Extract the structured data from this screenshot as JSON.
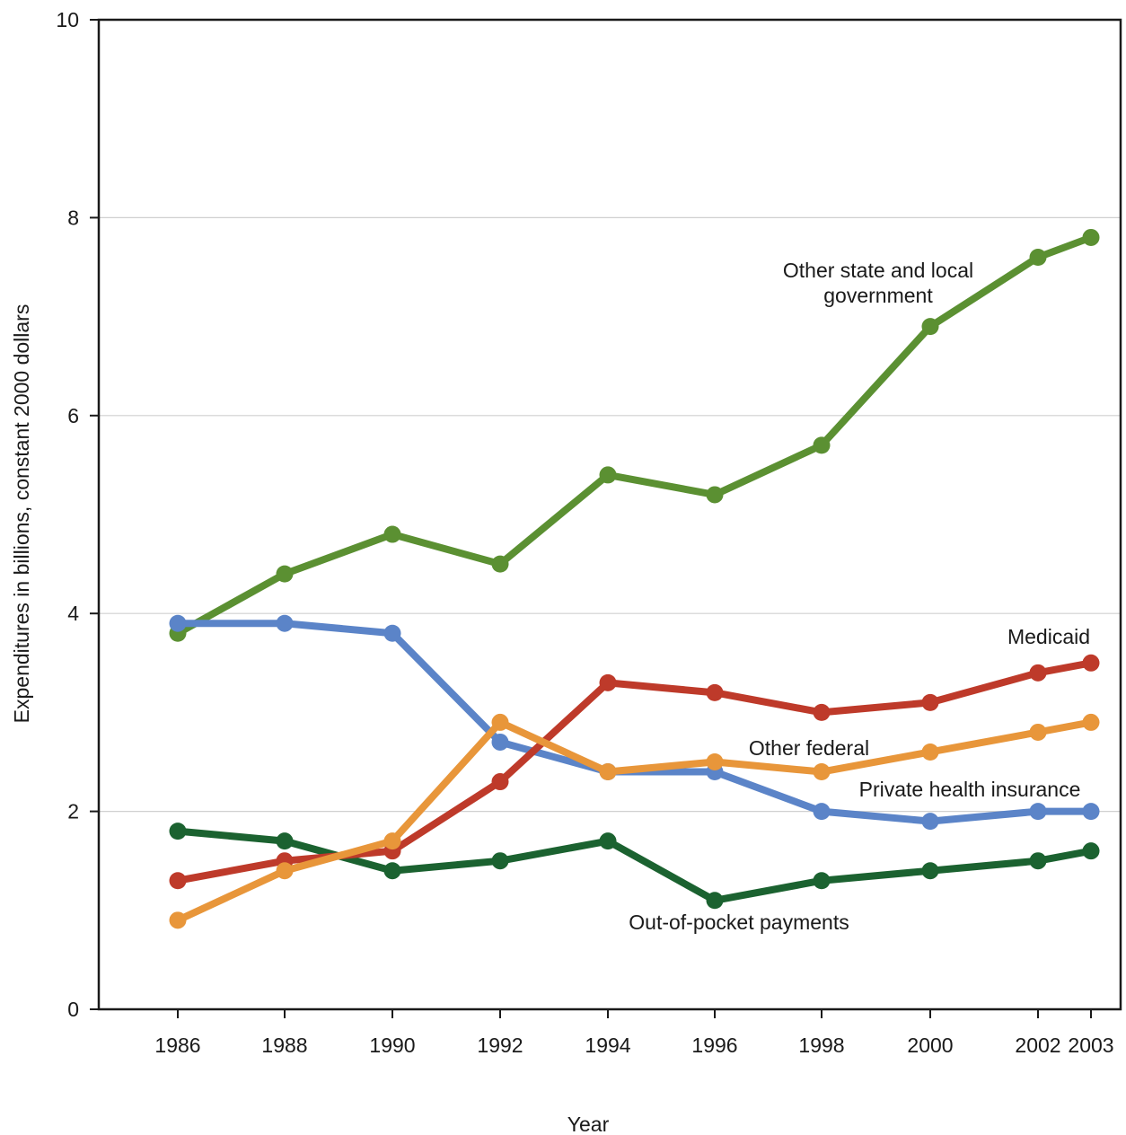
{
  "chart_data": {
    "type": "line",
    "title": "",
    "xlabel": "Year",
    "ylabel": "Expenditures in billions, constant 2000 dollars",
    "x": [
      1986,
      1988,
      1990,
      1992,
      1994,
      1996,
      1998,
      2000,
      2002,
      2003
    ],
    "x_tick_labels": [
      "1986",
      "1988",
      "1990",
      "1992",
      "1994",
      "1996",
      "1998",
      "2000",
      "2002",
      "2003"
    ],
    "ylim": [
      0,
      10
    ],
    "y_ticks": [
      0,
      2,
      4,
      6,
      8,
      10
    ],
    "grid": "horizontal",
    "series": [
      {
        "name": "Other state and local government",
        "label_lines": [
          "Other state and local",
          "government"
        ],
        "color": "#5b9032",
        "values": [
          3.8,
          4.4,
          4.8,
          4.5,
          5.4,
          5.2,
          5.7,
          6.9,
          7.6,
          7.8
        ]
      },
      {
        "name": "Private health insurance",
        "label_lines": [
          "Private health insurance"
        ],
        "color": "#5b84c8",
        "values": [
          3.9,
          3.9,
          3.8,
          2.7,
          2.4,
          2.4,
          2.0,
          1.9,
          2.0,
          2.0
        ]
      },
      {
        "name": "Medicaid",
        "label_lines": [
          "Medicaid"
        ],
        "color": "#be3a2a",
        "values": [
          1.3,
          1.5,
          1.6,
          2.3,
          3.3,
          3.2,
          3.0,
          3.1,
          3.4,
          3.5
        ]
      },
      {
        "name": "Other federal",
        "label_lines": [
          "Other federal"
        ],
        "color": "#e8963a",
        "values": [
          0.9,
          1.4,
          1.7,
          2.9,
          2.4,
          2.5,
          2.4,
          2.6,
          2.8,
          2.9
        ]
      },
      {
        "name": "Out-of-pocket payments",
        "label_lines": [
          "Out-of-pocket payments"
        ],
        "color": "#1b6230",
        "values": [
          1.8,
          1.7,
          1.4,
          1.5,
          1.7,
          1.1,
          1.3,
          1.4,
          1.5,
          1.6
        ]
      }
    ]
  }
}
